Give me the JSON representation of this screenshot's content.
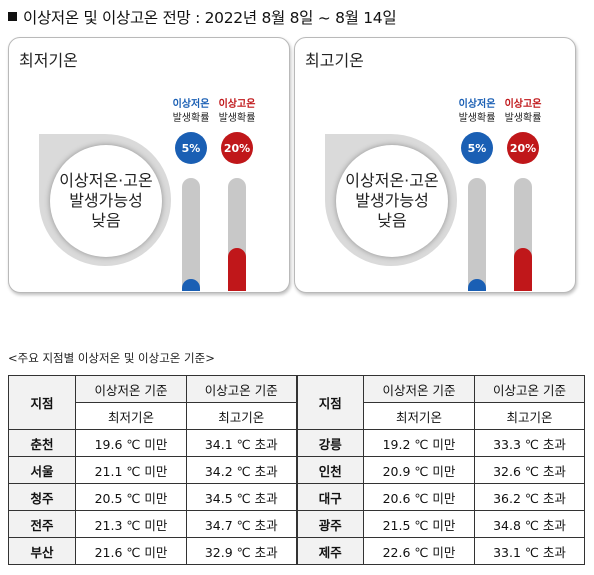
{
  "title": "이상저온 및 이상고온 전망 : 2022년 8월 8일 ~ 8월 14일",
  "panels": [
    {
      "title": "최저기온",
      "bubble": [
        "이상저온·고온",
        "발생가능성",
        "낮음"
      ],
      "cold": {
        "label1": "이상저온",
        "label2": "발생확률",
        "pct": "5%",
        "value": 5,
        "color": "#1a5fb4"
      },
      "hot": {
        "label1": "이상고온",
        "label2": "발생확률",
        "pct": "20%",
        "value": 20,
        "color": "#c0171a"
      }
    },
    {
      "title": "최고기온",
      "bubble": [
        "이상저온·고온",
        "발생가능성",
        "낮음"
      ],
      "cold": {
        "label1": "이상저온",
        "label2": "발생확률",
        "pct": "5%",
        "value": 5,
        "color": "#1a5fb4"
      },
      "hot": {
        "label1": "이상고온",
        "label2": "발생확률",
        "pct": "20%",
        "value": 20,
        "color": "#c0171a"
      }
    }
  ],
  "table": {
    "caption": "<주요 지점별 이상저온 및 이상고온 기준>",
    "station_header": "지점",
    "cold_header": "이상저온 기준",
    "hot_header": "이상고온 기준",
    "cold_sub": "최저기온",
    "hot_sub": "최고기온",
    "rows": [
      {
        "left": {
          "station": "춘천",
          "cold": "19.6 ℃ 미만",
          "hot": "34.1 ℃ 초과"
        },
        "right": {
          "station": "강릉",
          "cold": "19.2 ℃ 미만",
          "hot": "33.3 ℃ 초과"
        }
      },
      {
        "left": {
          "station": "서울",
          "cold": "21.1 ℃ 미만",
          "hot": "34.2 ℃ 초과"
        },
        "right": {
          "station": "인천",
          "cold": "20.9 ℃ 미만",
          "hot": "32.6 ℃ 초과"
        }
      },
      {
        "left": {
          "station": "청주",
          "cold": "20.5 ℃ 미만",
          "hot": "34.5 ℃ 초과"
        },
        "right": {
          "station": "대구",
          "cold": "20.6 ℃ 미만",
          "hot": "36.2 ℃ 초과"
        }
      },
      {
        "left": {
          "station": "전주",
          "cold": "21.3 ℃ 미만",
          "hot": "34.7 ℃ 초과"
        },
        "right": {
          "station": "광주",
          "cold": "21.5 ℃ 미만",
          "hot": "34.8 ℃ 초과"
        }
      },
      {
        "left": {
          "station": "부산",
          "cold": "21.6 ℃ 미만",
          "hot": "32.9 ℃ 초과"
        },
        "right": {
          "station": "제주",
          "cold": "22.6 ℃ 미만",
          "hot": "33.1 ℃ 초과"
        }
      }
    ]
  }
}
